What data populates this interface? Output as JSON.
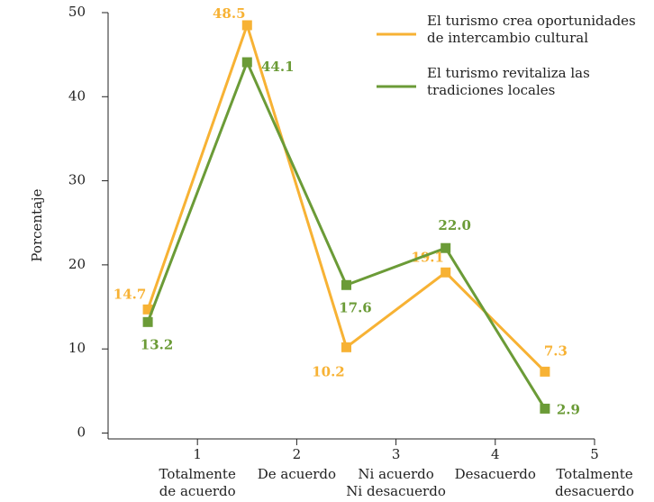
{
  "chart_data": {
    "type": "line",
    "x": [
      0.5,
      1.5,
      2.5,
      3.5,
      4.5
    ],
    "xlim": [
      0.1,
      5
    ],
    "xticks": [
      1,
      2,
      3,
      4,
      5
    ],
    "categories": [
      [
        "Totalmente",
        "de acuerdo"
      ],
      [
        "De acuerdo"
      ],
      [
        "Ni acuerdo",
        "Ni desacuerdo"
      ],
      [
        "Desacuerdo"
      ],
      [
        "Totalmente",
        "desacuerdo"
      ]
    ],
    "ylabel": "Porcentaje",
    "ylim": [
      -0.7,
      50
    ],
    "yticks": [
      0,
      10,
      20,
      30,
      40,
      50
    ],
    "legend": "upper right",
    "series": [
      {
        "name": "El turismo crea oportunidades de intercambio cultural",
        "color": "#f7b234",
        "values": [
          14.7,
          48.5,
          10.2,
          19.1,
          7.3
        ],
        "value_labels": [
          "14.7",
          "48.5",
          "10.2",
          "19.1",
          "7.3"
        ]
      },
      {
        "name": "El turismo revitaliza las tradiciones locales",
        "color": "#6b9b37",
        "values": [
          13.2,
          44.1,
          17.6,
          22.0,
          2.9
        ],
        "value_labels": [
          "13.2",
          "44.1",
          "17.6",
          "22.0",
          "2.9"
        ]
      }
    ]
  }
}
